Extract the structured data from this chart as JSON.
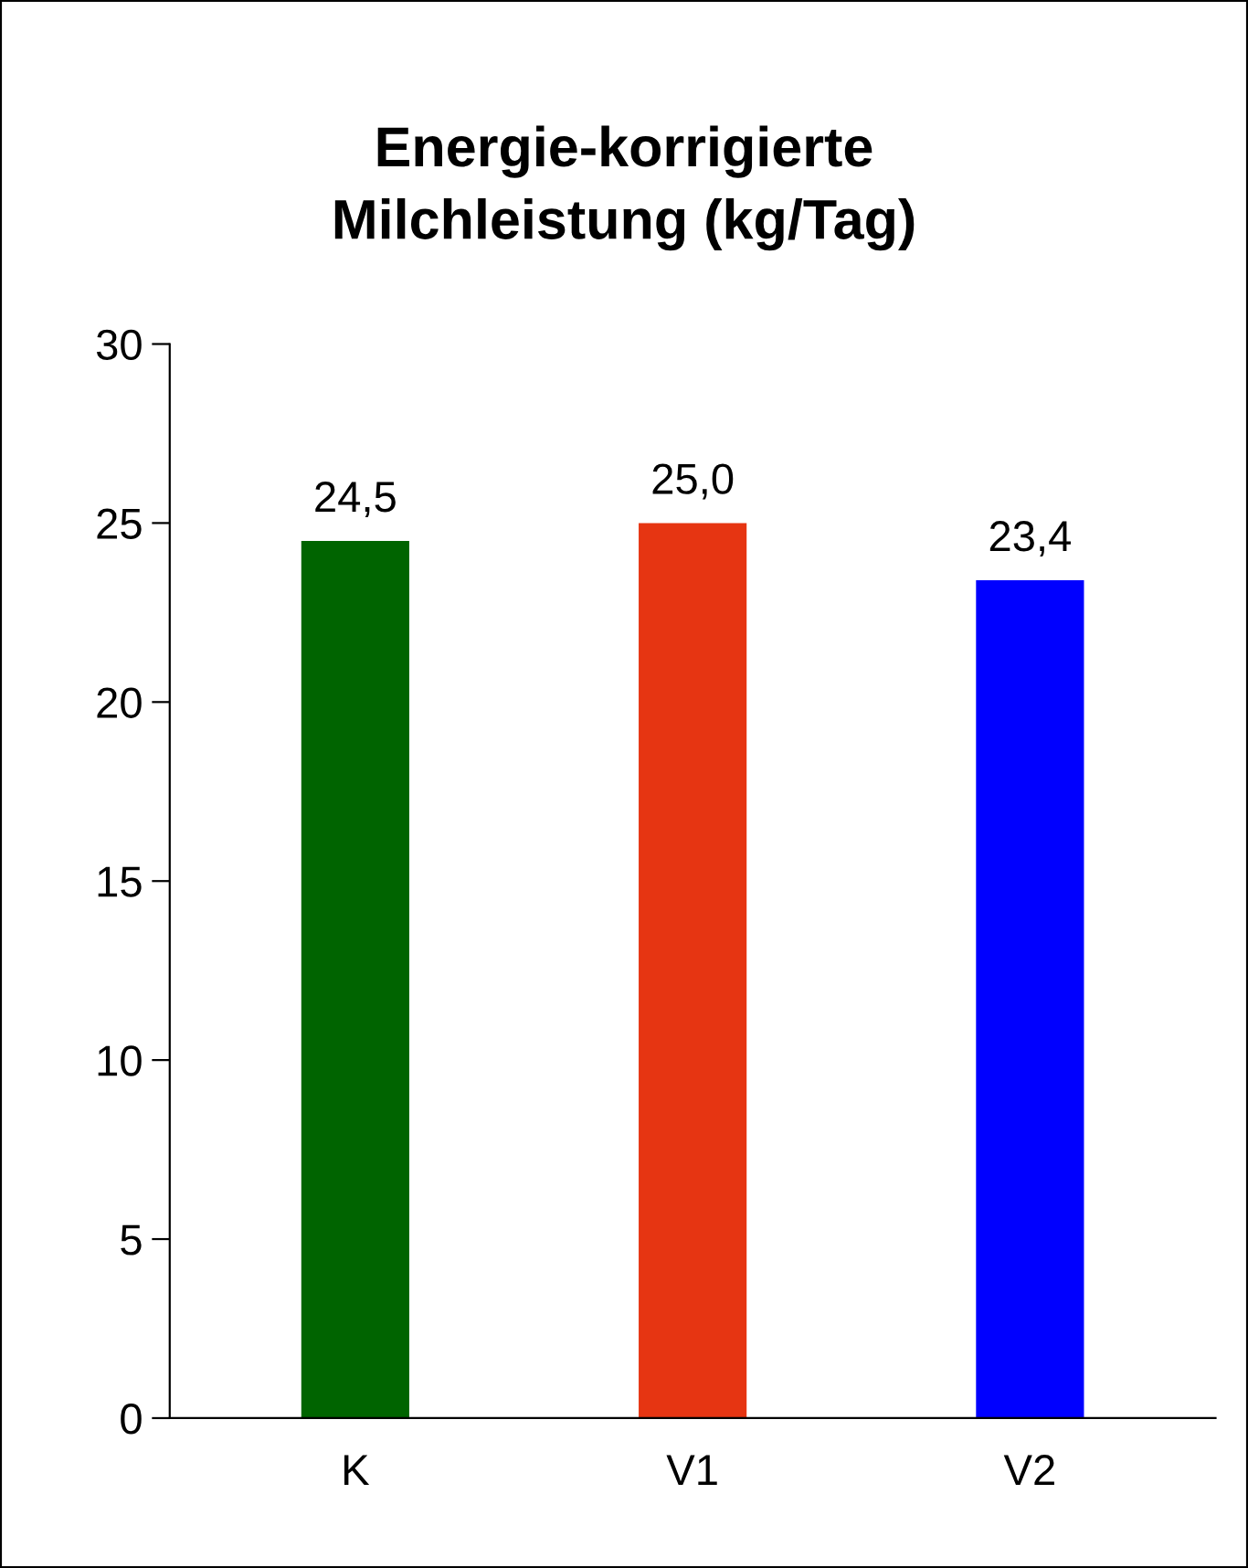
{
  "chart_data": {
    "type": "bar",
    "title": "Energie-korrigierte\nMilchleistung (kg/Tag)",
    "categories": [
      "K",
      "V1",
      "V2"
    ],
    "values": [
      24.5,
      25.0,
      23.4
    ],
    "colors": [
      "#006400",
      "#e63512",
      "#0000ff"
    ],
    "value_labels": [
      "24,5",
      "25,0",
      "23,4"
    ],
    "ylim": [
      0,
      30
    ],
    "yticks": [
      0,
      5,
      10,
      15,
      20,
      25,
      30
    ],
    "grid": false,
    "legend": false
  }
}
